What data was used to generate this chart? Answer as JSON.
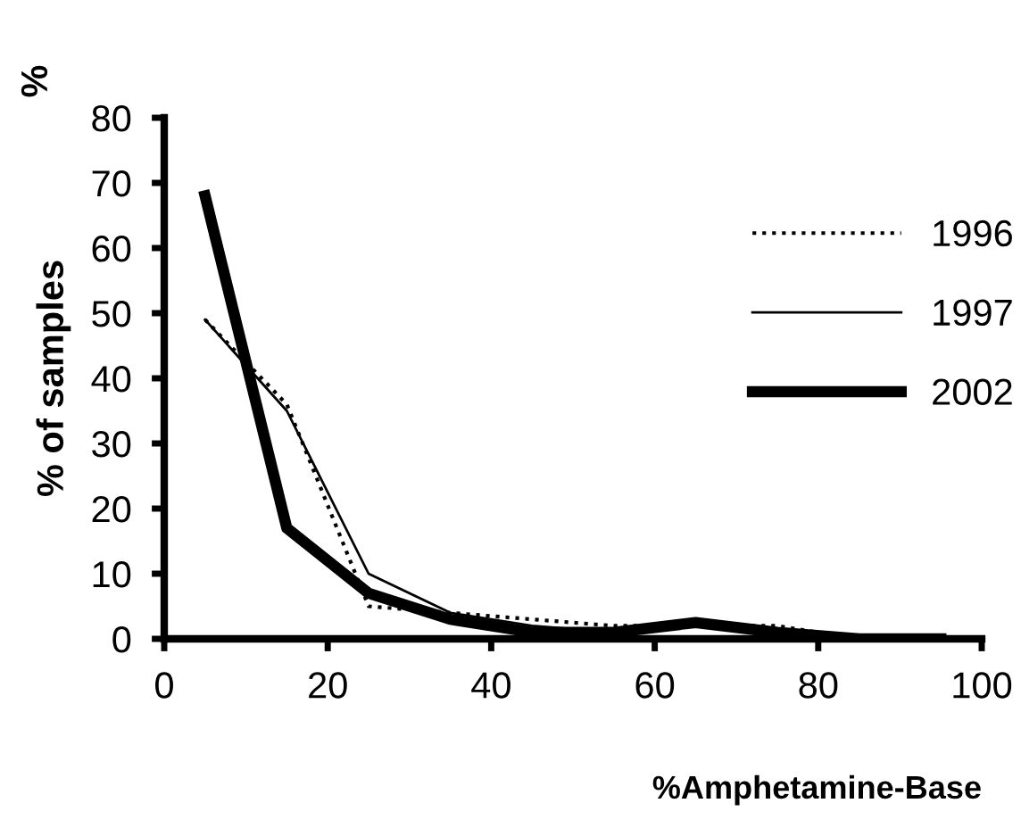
{
  "chart_data": {
    "type": "line",
    "xlabel": "%Amphetamine-Base",
    "ylabel": "% of samples",
    "annotations": [
      "%"
    ],
    "x": [
      5,
      15,
      25,
      35,
      45,
      55,
      65,
      75,
      85,
      95
    ],
    "series": [
      {
        "name": "1996",
        "color": "#000000",
        "line_style": "dotted",
        "values": [
          49,
          36,
          5,
          4,
          3,
          2,
          2,
          2,
          0,
          0
        ]
      },
      {
        "name": "1997",
        "color": "#000000",
        "line_style": "solid",
        "values": [
          49,
          35,
          10,
          4,
          2,
          1,
          2,
          1,
          0,
          0
        ]
      },
      {
        "name": "2002",
        "color": "#000000",
        "line_style": "solid",
        "values": [
          68,
          17,
          7,
          3,
          1,
          1,
          2.5,
          1,
          0,
          0
        ]
      }
    ],
    "xlim": [
      0,
      100
    ],
    "ylim": [
      0,
      80
    ],
    "xticks": [
      0,
      20,
      40,
      60,
      80,
      100
    ],
    "yticks": [
      0,
      10,
      20,
      30,
      40,
      50,
      60,
      70,
      80
    ],
    "grid": false,
    "legend": "right",
    "marker": "none"
  }
}
